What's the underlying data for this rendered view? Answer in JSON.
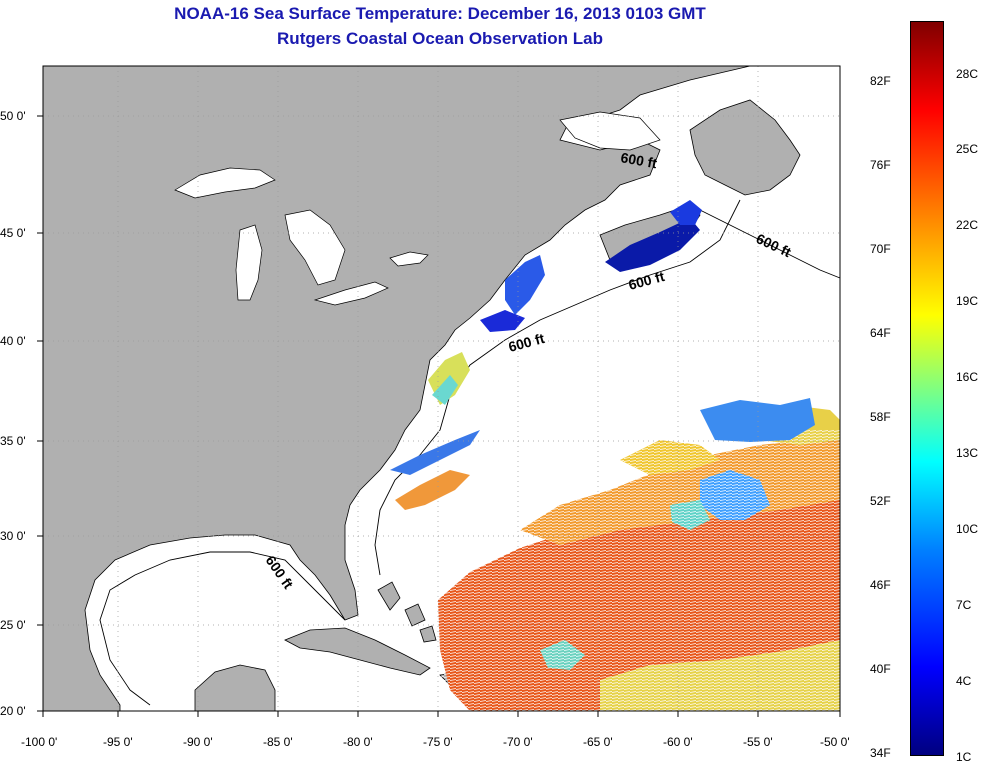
{
  "title": {
    "line1": "NOAA-16 Sea Surface Temperature:  December 16, 2013 0103 GMT",
    "line2": "Rutgers Coastal Ocean Observation Lab"
  },
  "map": {
    "lon_ticks": [
      "-100 0'",
      "-95 0'",
      "-90 0'",
      "-85 0'",
      "-80 0'",
      "-75 0'",
      "-70 0'",
      "-65 0'",
      "-60 0'",
      "-55 0'",
      "-50 0'"
    ],
    "lat_ticks": [
      "50 0'",
      "45 0'",
      "40 0'",
      "35 0'",
      "30 0'",
      "25 0'",
      "20 0'"
    ],
    "contour_label": "600 ft",
    "land_color": "#b0b0b0",
    "cloud_color": "#ffffff"
  },
  "colorbar": {
    "fahrenheit": [
      "82F",
      "76F",
      "70F",
      "64F",
      "58F",
      "52F",
      "46F",
      "40F",
      "34F"
    ],
    "celsius": [
      "28C",
      "25C",
      "22C",
      "19C",
      "16C",
      "13C",
      "10C",
      "7C",
      "4C",
      "1C"
    ]
  }
}
